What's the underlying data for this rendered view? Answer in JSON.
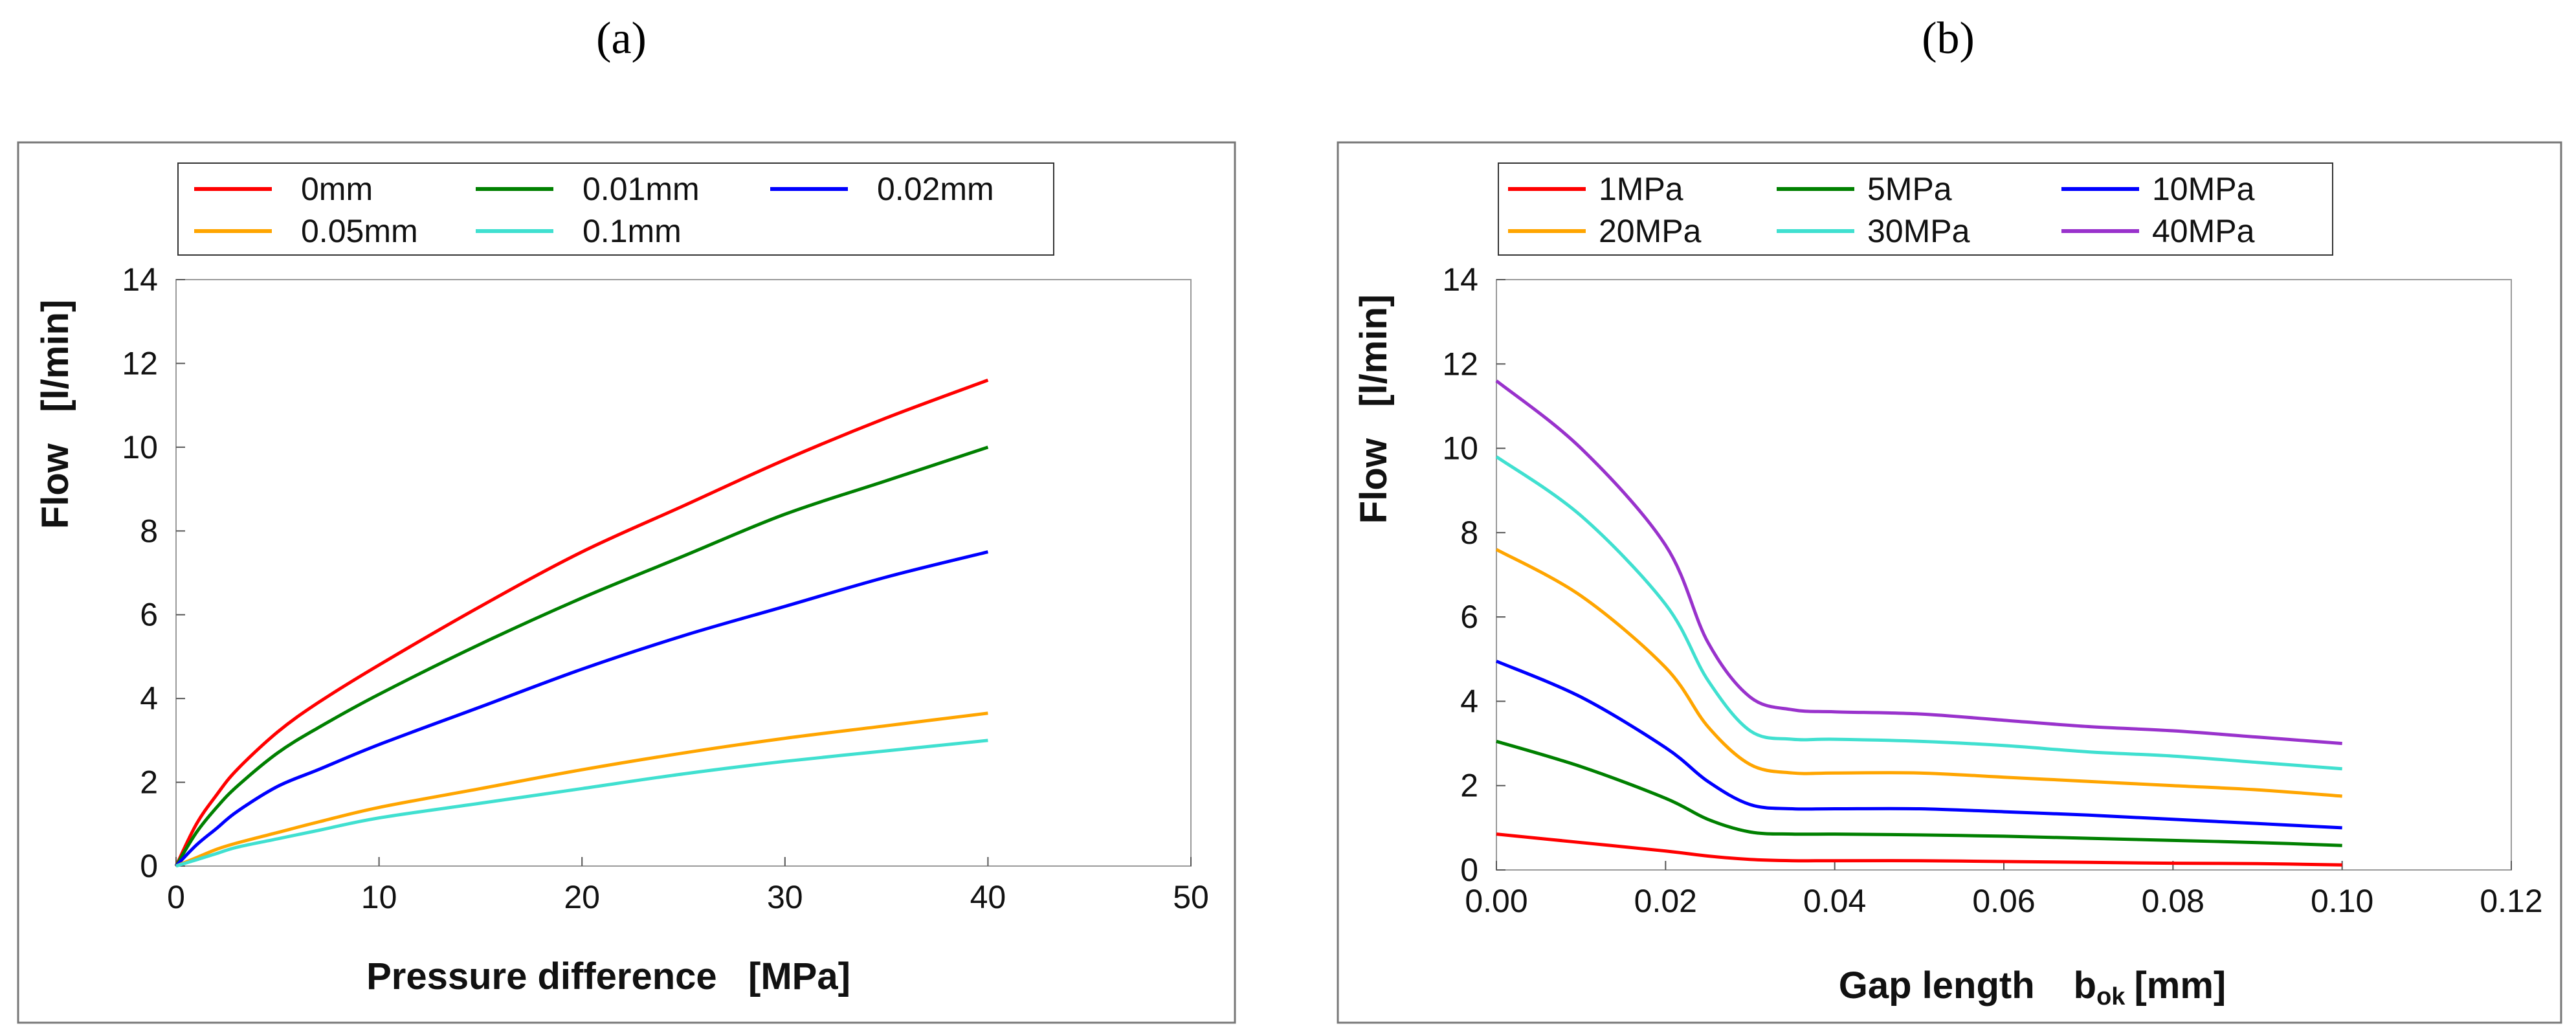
{
  "panels": [
    {
      "label": "(a)"
    },
    {
      "label": "(b)"
    }
  ],
  "chart_data": [
    {
      "type": "line",
      "title": "",
      "xlabel": "Pressure difference   [MPa]",
      "ylabel": "Flow   [l/min]",
      "xlim": [
        0,
        50
      ],
      "ylim": [
        0,
        14
      ],
      "xticks": [
        "0",
        "10",
        "20",
        "30",
        "40",
        "50"
      ],
      "yticks": [
        "0",
        "2",
        "4",
        "6",
        "8",
        "10",
        "12",
        "14"
      ],
      "legend_position": "top",
      "series": [
        {
          "name": "0mm",
          "color": "#ff0000",
          "x": [
            0,
            1,
            2,
            3,
            5,
            7,
            10,
            15,
            20,
            25,
            30,
            35,
            40
          ],
          "y": [
            0,
            1.0,
            1.7,
            2.3,
            3.2,
            3.9,
            4.8,
            6.2,
            7.5,
            8.6,
            9.7,
            10.7,
            11.6
          ]
        },
        {
          "name": "0.01mm",
          "color": "#008000",
          "x": [
            0,
            1,
            2,
            3,
            5,
            7,
            10,
            15,
            20,
            25,
            30,
            35,
            40
          ],
          "y": [
            0,
            0.8,
            1.4,
            1.9,
            2.7,
            3.3,
            4.1,
            5.3,
            6.4,
            7.4,
            8.4,
            9.2,
            10.0
          ]
        },
        {
          "name": "0.02mm",
          "color": "#0000ff",
          "x": [
            0,
            1,
            2,
            3,
            5,
            7,
            10,
            15,
            20,
            25,
            30,
            35,
            40
          ],
          "y": [
            0,
            0.5,
            0.9,
            1.3,
            1.9,
            2.3,
            2.9,
            3.8,
            4.7,
            5.5,
            6.2,
            6.9,
            7.5
          ]
        },
        {
          "name": "0.05mm",
          "color": "#ffa500",
          "x": [
            0,
            1,
            2,
            3,
            5,
            7,
            10,
            15,
            20,
            25,
            30,
            35,
            40
          ],
          "y": [
            0,
            0.2,
            0.4,
            0.55,
            0.8,
            1.05,
            1.4,
            1.85,
            2.3,
            2.7,
            3.05,
            3.35,
            3.65
          ]
        },
        {
          "name": "0.1mm",
          "color": "#40e0d0",
          "x": [
            0,
            1,
            2,
            3,
            5,
            7,
            10,
            15,
            20,
            25,
            30,
            35,
            40
          ],
          "y": [
            0,
            0.15,
            0.3,
            0.45,
            0.65,
            0.85,
            1.15,
            1.5,
            1.85,
            2.2,
            2.5,
            2.75,
            3.0
          ]
        }
      ]
    },
    {
      "type": "line",
      "title": "",
      "xlabel": "Gap length",
      "xlabel_var": "b",
      "xlabel_sub": "ok",
      "xlabel_unit": "[mm]",
      "ylabel": "Flow   [l/min]",
      "xlim": [
        0,
        0.12
      ],
      "ylim": [
        0,
        14
      ],
      "xticks": [
        "0.00",
        "0.02",
        "0.04",
        "0.06",
        "0.08",
        "0.10",
        "0.12"
      ],
      "yticks": [
        "0",
        "2",
        "4",
        "6",
        "8",
        "10",
        "12",
        "14"
      ],
      "legend_position": "top",
      "series": [
        {
          "name": "1MPa",
          "color": "#ff0000",
          "x": [
            0,
            0.01,
            0.02,
            0.025,
            0.03,
            0.035,
            0.04,
            0.05,
            0.06,
            0.07,
            0.08,
            0.09,
            0.1
          ],
          "y": [
            0.85,
            0.65,
            0.45,
            0.33,
            0.25,
            0.22,
            0.22,
            0.22,
            0.2,
            0.18,
            0.16,
            0.15,
            0.12
          ]
        },
        {
          "name": "5MPa",
          "color": "#008000",
          "x": [
            0,
            0.01,
            0.02,
            0.025,
            0.03,
            0.035,
            0.04,
            0.05,
            0.06,
            0.07,
            0.08,
            0.09,
            0.1
          ],
          "y": [
            3.05,
            2.45,
            1.7,
            1.2,
            0.9,
            0.85,
            0.85,
            0.83,
            0.8,
            0.75,
            0.7,
            0.65,
            0.58
          ]
        },
        {
          "name": "10MPa",
          "color": "#0000ff",
          "x": [
            0,
            0.01,
            0.02,
            0.025,
            0.03,
            0.035,
            0.04,
            0.05,
            0.06,
            0.07,
            0.08,
            0.09,
            0.1
          ],
          "y": [
            4.95,
            4.1,
            2.9,
            2.1,
            1.55,
            1.45,
            1.45,
            1.45,
            1.38,
            1.3,
            1.2,
            1.1,
            1.0
          ]
        },
        {
          "name": "20MPa",
          "color": "#ffa500",
          "x": [
            0,
            0.01,
            0.02,
            0.025,
            0.03,
            0.035,
            0.04,
            0.05,
            0.06,
            0.07,
            0.08,
            0.09,
            0.1
          ],
          "y": [
            7.6,
            6.5,
            4.8,
            3.4,
            2.5,
            2.3,
            2.3,
            2.3,
            2.2,
            2.1,
            2.0,
            1.9,
            1.75
          ]
        },
        {
          "name": "30MPa",
          "color": "#40e0d0",
          "x": [
            0,
            0.01,
            0.02,
            0.025,
            0.03,
            0.035,
            0.04,
            0.05,
            0.06,
            0.07,
            0.08,
            0.09,
            0.1
          ],
          "y": [
            9.8,
            8.4,
            6.3,
            4.5,
            3.3,
            3.1,
            3.1,
            3.05,
            2.95,
            2.8,
            2.7,
            2.55,
            2.4
          ]
        },
        {
          "name": "40MPa",
          "color": "#9932cc",
          "x": [
            0,
            0.01,
            0.02,
            0.025,
            0.03,
            0.035,
            0.04,
            0.05,
            0.06,
            0.07,
            0.08,
            0.09,
            0.1
          ],
          "y": [
            11.6,
            10.0,
            7.7,
            5.4,
            4.1,
            3.8,
            3.75,
            3.7,
            3.55,
            3.4,
            3.3,
            3.15,
            3.0
          ]
        }
      ]
    }
  ]
}
